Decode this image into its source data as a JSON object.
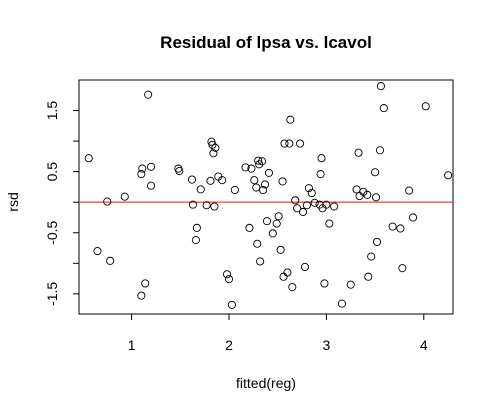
{
  "chart_data": {
    "type": "scatter",
    "title": "Residual of lpsa vs. lcavol",
    "xlabel": "fitted(reg)",
    "ylabel": "rsd",
    "xlim": [
      0.46,
      4.3
    ],
    "ylim": [
      -1.83,
      2.0
    ],
    "x_ticks": [
      1,
      2,
      3,
      4
    ],
    "x_tick_labels": [
      "1",
      "2",
      "3",
      "4"
    ],
    "y_ticks": [
      -1.5,
      -0.5,
      0.5,
      1.5
    ],
    "y_tick_labels": [
      "-1.5",
      "-0.5",
      "0.5",
      "1.5"
    ],
    "y_ticks_minor": [
      -1.0,
      0.0,
      1.0
    ],
    "grid": false,
    "legend": "none",
    "reference_line": {
      "y": 0,
      "color": "#ff4a4a"
    },
    "point_color": "#000000",
    "points": [
      [
        0.56,
        0.72
      ],
      [
        0.65,
        -0.8
      ],
      [
        0.75,
        0.01
      ],
      [
        0.78,
        -0.96
      ],
      [
        0.93,
        0.09
      ],
      [
        1.1,
        -1.53
      ],
      [
        1.1,
        0.46
      ],
      [
        1.11,
        0.55
      ],
      [
        1.14,
        -1.33
      ],
      [
        1.17,
        1.76
      ],
      [
        1.2,
        0.27
      ],
      [
        1.2,
        0.58
      ],
      [
        1.48,
        0.55
      ],
      [
        1.49,
        0.51
      ],
      [
        1.62,
        0.37
      ],
      [
        1.63,
        -0.04
      ],
      [
        1.66,
        -0.62
      ],
      [
        1.67,
        -0.42
      ],
      [
        1.71,
        0.21
      ],
      [
        1.77,
        -0.05
      ],
      [
        1.81,
        0.35
      ],
      [
        1.82,
        0.99
      ],
      [
        1.83,
        0.94
      ],
      [
        1.84,
        0.8
      ],
      [
        1.85,
        -0.07
      ],
      [
        1.86,
        0.89
      ],
      [
        1.89,
        0.42
      ],
      [
        1.93,
        0.36
      ],
      [
        1.98,
        -1.18
      ],
      [
        2.0,
        -1.26
      ],
      [
        2.03,
        -1.68
      ],
      [
        2.06,
        0.2
      ],
      [
        2.17,
        0.57
      ],
      [
        2.21,
        -0.42
      ],
      [
        2.23,
        0.55
      ],
      [
        2.26,
        0.36
      ],
      [
        2.28,
        0.24
      ],
      [
        2.29,
        -0.68
      ],
      [
        2.3,
        0.68
      ],
      [
        2.31,
        0.62
      ],
      [
        2.32,
        -0.97
      ],
      [
        2.34,
        0.67
      ],
      [
        2.35,
        0.2
      ],
      [
        2.37,
        0.29
      ],
      [
        2.39,
        -0.31
      ],
      [
        2.41,
        0.48
      ],
      [
        2.45,
        -0.51
      ],
      [
        2.49,
        -0.35
      ],
      [
        2.51,
        -0.23
      ],
      [
        2.53,
        -0.78
      ],
      [
        2.55,
        0.34
      ],
      [
        2.56,
        -1.22
      ],
      [
        2.57,
        0.96
      ],
      [
        2.6,
        -1.15
      ],
      [
        2.62,
        0.96
      ],
      [
        2.63,
        1.35
      ],
      [
        2.65,
        -1.39
      ],
      [
        2.68,
        0.03
      ],
      [
        2.7,
        -0.1
      ],
      [
        2.73,
        0.96
      ],
      [
        2.76,
        -0.16
      ],
      [
        2.78,
        -1.06
      ],
      [
        2.8,
        -0.05
      ],
      [
        2.82,
        0.23
      ],
      [
        2.85,
        0.15
      ],
      [
        2.88,
        -0.01
      ],
      [
        2.93,
        -0.04
      ],
      [
        2.94,
        0.46
      ],
      [
        2.95,
        0.72
      ],
      [
        2.96,
        -0.1
      ],
      [
        2.98,
        -1.33
      ],
      [
        3.0,
        -0.04
      ],
      [
        3.03,
        -0.35
      ],
      [
        3.08,
        -0.07
      ],
      [
        3.16,
        -1.66
      ],
      [
        3.25,
        -1.35
      ],
      [
        3.31,
        0.21
      ],
      [
        3.33,
        0.81
      ],
      [
        3.34,
        0.1
      ],
      [
        3.38,
        0.17
      ],
      [
        3.42,
        0.12
      ],
      [
        3.43,
        -1.22
      ],
      [
        3.46,
        -0.89
      ],
      [
        3.5,
        0.49
      ],
      [
        3.51,
        0.08
      ],
      [
        3.52,
        -0.65
      ],
      [
        3.55,
        0.85
      ],
      [
        3.56,
        1.9
      ],
      [
        3.59,
        1.54
      ],
      [
        3.68,
        -0.4
      ],
      [
        3.76,
        -0.43
      ],
      [
        3.78,
        -1.08
      ],
      [
        3.85,
        0.19
      ],
      [
        3.89,
        -0.25
      ],
      [
        4.02,
        1.57
      ],
      [
        4.25,
        0.44
      ]
    ]
  }
}
